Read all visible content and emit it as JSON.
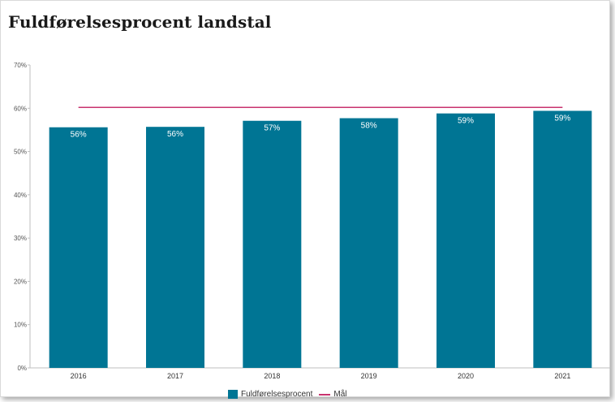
{
  "colors": {
    "bar": "#007594",
    "goal": "#c8336e"
  },
  "chart_data": {
    "type": "bar",
    "title": "Fuldførelsesprocent landstal",
    "xlabel": "",
    "ylabel": "",
    "categories": [
      "2016",
      "2017",
      "2018",
      "2019",
      "2020",
      "2021"
    ],
    "series": [
      {
        "name": "Fuldførelsesprocent",
        "values": [
          55.6,
          55.7,
          57.1,
          57.7,
          58.8,
          59.4
        ],
        "labels": [
          "56%",
          "56%",
          "57%",
          "58%",
          "59%",
          "59%"
        ]
      }
    ],
    "goal": {
      "name": "Mål",
      "value": 60.2
    },
    "ylim": [
      0,
      70
    ],
    "yticks": [
      "0%",
      "10%",
      "20%",
      "30%",
      "40%",
      "50%",
      "60%",
      "70%"
    ],
    "grid": false,
    "legend_position": "bottom-center"
  }
}
